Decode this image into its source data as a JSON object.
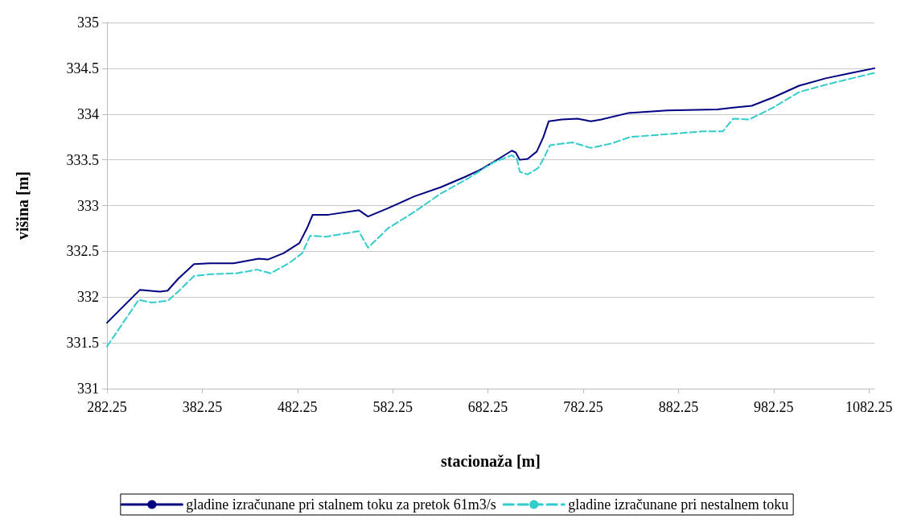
{
  "chart_data": {
    "type": "line",
    "xlabel": "stacionaža [m]",
    "ylabel": "višina [m]",
    "xlim": [
      282.25,
      1088
    ],
    "xticks": [
      282.25,
      382.25,
      482.25,
      582.25,
      682.25,
      782.25,
      882.25,
      982.25,
      1082.25
    ],
    "ylim": [
      331,
      335
    ],
    "yticks": [
      331,
      331.5,
      332,
      332.5,
      333,
      333.5,
      334,
      334.5,
      335
    ],
    "grid": "y",
    "legend": "bottom",
    "marker": "none",
    "series": [
      {
        "name": "gladine izračunane pri stalnem toku za pretok 61m3/s",
        "color": "#000080",
        "line_style": "solid",
        "x": [
          282.25,
          316.9,
          337.7,
          345.9,
          357.0,
          373.6,
          390.2,
          415.1,
          441.5,
          451.1,
          467.7,
          484.3,
          492.6,
          498.2,
          514.8,
          546.6,
          556.3,
          577.1,
          604.8,
          632.5,
          657.4,
          674.0,
          693.4,
          707.3,
          711.4,
          715.6,
          723.9,
          733.5,
          740.5,
          746.0,
          759.8,
          776.4,
          790.3,
          801.4,
          829.0,
          870.5,
          923.2,
          939.8,
          959.2,
          981.4,
          1009.0,
          1036.7,
          1064.4,
          1088
        ],
        "values": [
          331.72,
          332.08,
          332.06,
          332.07,
          332.2,
          332.36,
          332.37,
          332.37,
          332.42,
          332.41,
          332.48,
          332.59,
          332.76,
          332.9,
          332.9,
          332.95,
          332.88,
          332.97,
          333.1,
          333.2,
          333.31,
          333.39,
          333.51,
          333.6,
          333.58,
          333.5,
          333.51,
          333.59,
          333.75,
          333.92,
          333.94,
          333.95,
          333.92,
          333.94,
          334.01,
          334.04,
          334.05,
          334.07,
          334.09,
          334.18,
          334.31,
          334.39,
          334.45,
          334.5
        ]
      },
      {
        "name": "gladine izračunane pri nestalnem toku",
        "color": "#33cccc",
        "line_style": "dashed",
        "x": [
          282.25,
          315.5,
          329.3,
          346.0,
          357.0,
          373.6,
          390.2,
          417.9,
          440.1,
          453.9,
          473.3,
          487.2,
          495.5,
          512.1,
          546.6,
          556.3,
          567.4,
          577.1,
          604.8,
          632.5,
          660.2,
          687.8,
          707.3,
          712.7,
          715.6,
          723.9,
          734.9,
          740.5,
          747.4,
          770.9,
          790.3,
          812.4,
          831.8,
          870.5,
          906.6,
          928.7,
          939.8,
          956.4,
          981.4,
          1009.0,
          1036.7,
          1088
        ],
        "values": [
          331.46,
          331.97,
          331.94,
          331.96,
          332.06,
          332.23,
          332.25,
          332.26,
          332.3,
          332.26,
          332.37,
          332.48,
          332.67,
          332.66,
          332.72,
          332.54,
          332.65,
          332.75,
          332.93,
          333.13,
          333.29,
          333.47,
          333.55,
          333.51,
          333.37,
          333.34,
          333.41,
          333.51,
          333.66,
          333.69,
          333.63,
          333.68,
          333.75,
          333.78,
          333.81,
          333.81,
          333.95,
          333.94,
          334.07,
          334.24,
          334.32,
          334.45
        ]
      }
    ]
  }
}
